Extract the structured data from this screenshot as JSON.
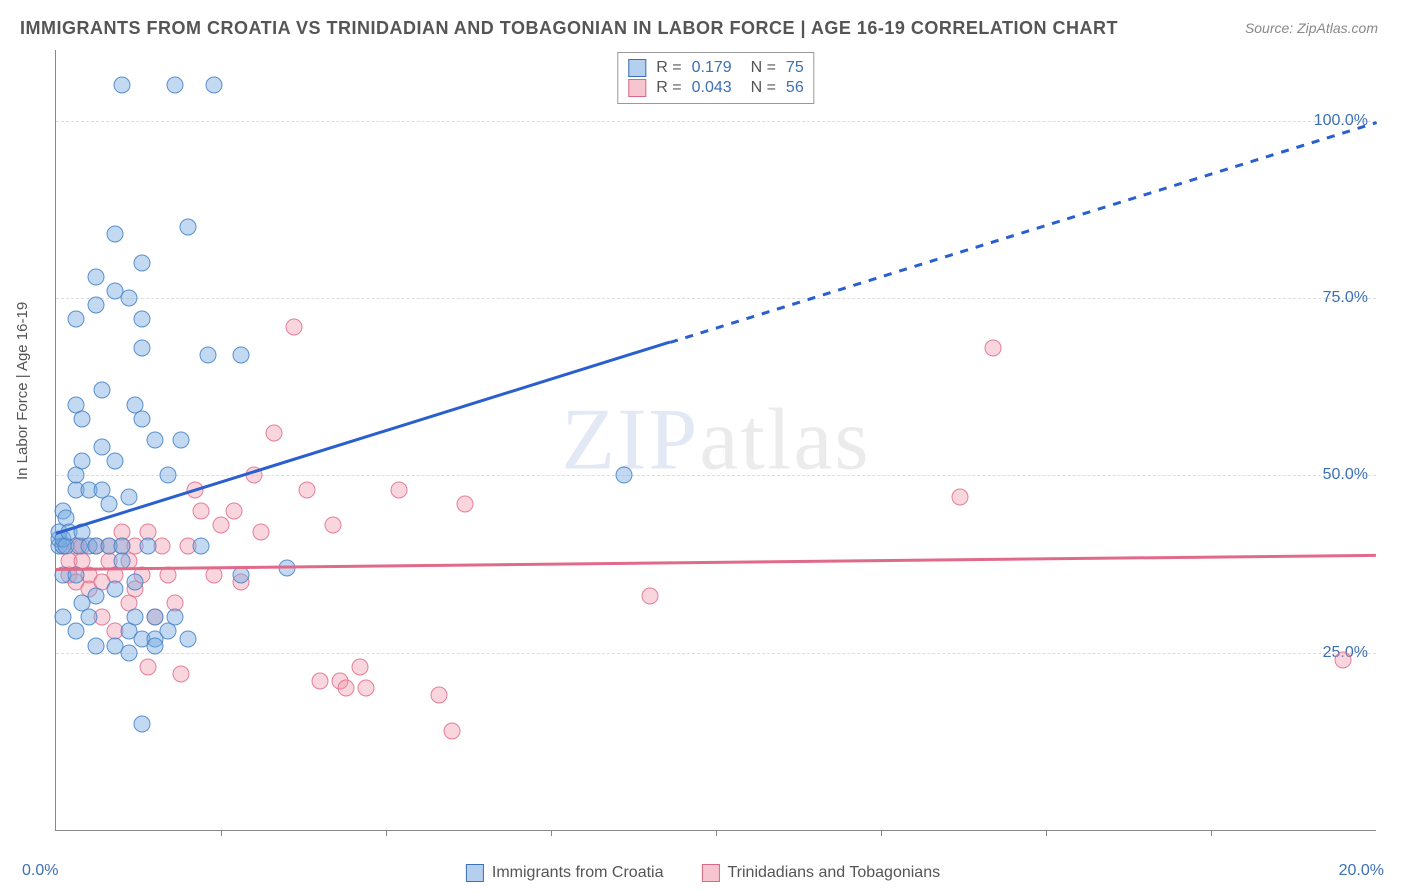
{
  "title": "IMMIGRANTS FROM CROATIA VS TRINIDADIAN AND TOBAGONIAN IN LABOR FORCE | AGE 16-19 CORRELATION CHART",
  "source": "Source: ZipAtlas.com",
  "ylabel": "In Labor Force | Age 16-19",
  "watermark_a": "ZIP",
  "watermark_b": "atlas",
  "chart": {
    "type": "scatter",
    "xlim": [
      0,
      20
    ],
    "ylim": [
      0,
      110
    ],
    "xticks_minor": [
      2.5,
      5,
      7.5,
      10,
      12.5,
      15,
      17.5
    ],
    "xtick_labels": {
      "first": "0.0%",
      "last": "20.0%"
    },
    "ytick_values": [
      25,
      50,
      75,
      100
    ],
    "ytick_labels": [
      "25.0%",
      "50.0%",
      "75.0%",
      "100.0%"
    ],
    "grid_color": "#dddddd",
    "axis_color": "#888888",
    "background_color": "#ffffff",
    "marker_size": 17,
    "series_blue": {
      "label": "Immigrants from Croatia",
      "fill": "rgba(120,170,225,0.45)",
      "stroke": "rgba(70,130,200,0.85)",
      "R": "0.179",
      "N": "75",
      "trend": {
        "x1": 0,
        "y1": 42,
        "x2_solid": 9.3,
        "y2_solid": 69,
        "x2_dash": 20,
        "y2_dash": 100,
        "color": "#2a5fd0"
      },
      "points": [
        [
          0.05,
          40
        ],
        [
          0.05,
          41
        ],
        [
          0.05,
          42
        ],
        [
          0.1,
          40
        ],
        [
          0.1,
          41
        ],
        [
          0.1,
          45
        ],
        [
          0.1,
          30
        ],
        [
          0.1,
          36
        ],
        [
          0.15,
          40
        ],
        [
          0.15,
          44
        ],
        [
          0.2,
          42
        ],
        [
          0.3,
          48
        ],
        [
          0.3,
          50
        ],
        [
          0.3,
          60
        ],
        [
          0.3,
          36
        ],
        [
          0.3,
          28
        ],
        [
          0.3,
          72
        ],
        [
          0.35,
          40
        ],
        [
          0.4,
          58
        ],
        [
          0.4,
          52
        ],
        [
          0.4,
          42
        ],
        [
          0.4,
          32
        ],
        [
          0.5,
          40
        ],
        [
          0.5,
          48
        ],
        [
          0.5,
          30
        ],
        [
          0.6,
          78
        ],
        [
          0.6,
          74
        ],
        [
          0.6,
          40
        ],
        [
          0.6,
          33
        ],
        [
          0.6,
          26
        ],
        [
          0.7,
          48
        ],
        [
          0.7,
          54
        ],
        [
          0.7,
          62
        ],
        [
          0.8,
          46
        ],
        [
          0.8,
          40
        ],
        [
          0.9,
          52
        ],
        [
          0.9,
          84
        ],
        [
          0.9,
          34
        ],
        [
          0.9,
          76
        ],
        [
          0.9,
          26
        ],
        [
          1.0,
          40
        ],
        [
          1.0,
          38
        ],
        [
          1.0,
          105
        ],
        [
          1.1,
          75
        ],
        [
          1.1,
          47
        ],
        [
          1.1,
          28
        ],
        [
          1.1,
          25
        ],
        [
          1.2,
          60
        ],
        [
          1.2,
          35
        ],
        [
          1.2,
          30
        ],
        [
          1.3,
          72
        ],
        [
          1.3,
          80
        ],
        [
          1.3,
          58
        ],
        [
          1.3,
          68
        ],
        [
          1.3,
          27
        ],
        [
          1.3,
          15
        ],
        [
          1.4,
          40
        ],
        [
          1.5,
          55
        ],
        [
          1.5,
          30
        ],
        [
          1.5,
          27
        ],
        [
          1.5,
          26
        ],
        [
          1.7,
          50
        ],
        [
          1.7,
          28
        ],
        [
          1.8,
          105
        ],
        [
          1.8,
          30
        ],
        [
          1.9,
          55
        ],
        [
          2.0,
          85
        ],
        [
          2.0,
          27
        ],
        [
          2.2,
          40
        ],
        [
          2.3,
          67
        ],
        [
          2.4,
          105
        ],
        [
          2.8,
          67
        ],
        [
          2.8,
          36
        ],
        [
          3.5,
          37
        ],
        [
          8.6,
          50
        ]
      ]
    },
    "series_pink": {
      "label": "Trinidadians and Tobagonians",
      "fill": "rgba(240,150,170,0.40)",
      "stroke": "rgba(225,110,140,0.85)",
      "R": "0.043",
      "N": "56",
      "trend": {
        "x1": 0,
        "y1": 37,
        "x2": 20,
        "y2": 39,
        "color": "#e06a8a"
      },
      "points": [
        [
          0.1,
          40
        ],
        [
          0.2,
          38
        ],
        [
          0.2,
          36
        ],
        [
          0.3,
          40
        ],
        [
          0.3,
          35
        ],
        [
          0.4,
          38
        ],
        [
          0.4,
          40
        ],
        [
          0.5,
          36
        ],
        [
          0.5,
          34
        ],
        [
          0.6,
          40
        ],
        [
          0.7,
          35
        ],
        [
          0.7,
          30
        ],
        [
          0.8,
          38
        ],
        [
          0.8,
          40
        ],
        [
          0.9,
          36
        ],
        [
          0.9,
          28
        ],
        [
          1.0,
          40
        ],
        [
          1.0,
          42
        ],
        [
          1.1,
          32
        ],
        [
          1.1,
          38
        ],
        [
          1.2,
          40
        ],
        [
          1.2,
          34
        ],
        [
          1.3,
          36
        ],
        [
          1.4,
          23
        ],
        [
          1.4,
          42
        ],
        [
          1.5,
          30
        ],
        [
          1.6,
          40
        ],
        [
          1.7,
          36
        ],
        [
          1.8,
          32
        ],
        [
          1.9,
          22
        ],
        [
          2.0,
          40
        ],
        [
          2.1,
          48
        ],
        [
          2.2,
          45
        ],
        [
          2.4,
          36
        ],
        [
          2.5,
          43
        ],
        [
          2.7,
          45
        ],
        [
          2.8,
          35
        ],
        [
          3.0,
          50
        ],
        [
          3.1,
          42
        ],
        [
          3.3,
          56
        ],
        [
          3.6,
          71
        ],
        [
          3.8,
          48
        ],
        [
          4.0,
          21
        ],
        [
          4.2,
          43
        ],
        [
          4.3,
          21
        ],
        [
          4.4,
          20
        ],
        [
          4.6,
          23
        ],
        [
          4.7,
          20
        ],
        [
          5.2,
          48
        ],
        [
          5.8,
          19
        ],
        [
          6.0,
          14
        ],
        [
          6.2,
          46
        ],
        [
          9.0,
          33
        ],
        [
          13.7,
          47
        ],
        [
          14.2,
          68
        ],
        [
          19.5,
          24
        ]
      ]
    }
  },
  "rn_box": {
    "rows": [
      {
        "swatch": "blue",
        "R": "0.179",
        "N": "75"
      },
      {
        "swatch": "pink",
        "R": "0.043",
        "N": "56"
      }
    ]
  },
  "bottom_legend": [
    {
      "swatch": "blue",
      "label": "Immigrants from Croatia"
    },
    {
      "swatch": "pink",
      "label": "Trinidadians and Tobagonians"
    }
  ]
}
